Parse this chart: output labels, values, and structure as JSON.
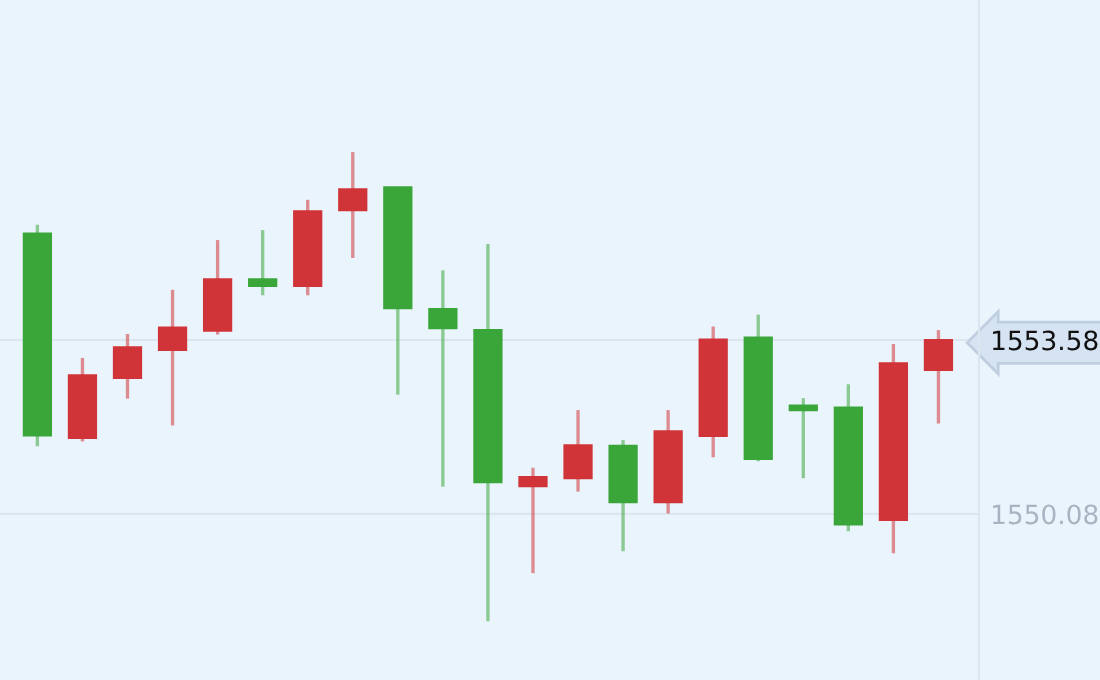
{
  "chart_data": {
    "type": "candlestick",
    "categories": [
      null,
      null,
      null,
      null,
      null,
      null,
      null,
      null,
      null,
      null,
      null,
      null,
      null,
      null,
      null,
      null,
      null,
      null,
      null,
      null,
      null
    ],
    "ohlc": [
      [
        1555.72,
        1555.9,
        1551.44,
        1551.66
      ],
      [
        1551.61,
        1553.22,
        1551.54,
        1552.87
      ],
      [
        1552.82,
        1553.7,
        1552.4,
        1553.43
      ],
      [
        1553.38,
        1554.59,
        1551.86,
        1553.83
      ],
      [
        1553.77,
        1555.59,
        1553.69,
        1554.8
      ],
      [
        1554.8,
        1555.79,
        1554.48,
        1554.67
      ],
      [
        1554.67,
        1556.4,
        1554.48,
        1556.17
      ],
      [
        1556.19,
        1557.36,
        1555.23,
        1556.61
      ],
      [
        1556.65,
        1556.65,
        1552.48,
        1554.22
      ],
      [
        1554.2,
        1554.98,
        1550.63,
        1553.82
      ],
      [
        1553.78,
        1555.51,
        1547.92,
        1550.72
      ],
      [
        1550.64,
        1551.01,
        1548.89,
        1550.82
      ],
      [
        1550.8,
        1552.17,
        1550.53,
        1551.46
      ],
      [
        1551.45,
        1551.57,
        1549.33,
        1550.32
      ],
      [
        1550.32,
        1552.17,
        1550.09,
        1551.74
      ],
      [
        1551.65,
        1553.85,
        1551.22,
        1553.59
      ],
      [
        1553.63,
        1554.09,
        1551.14,
        1551.19
      ],
      [
        1552.26,
        1552.41,
        1550.8,
        1552.17
      ],
      [
        1552.22,
        1552.69,
        1549.73,
        1549.87
      ],
      [
        1549.96,
        1553.5,
        1549.29,
        1553.11
      ],
      [
        1552.98,
        1553.78,
        1551.9,
        1553.58
      ]
    ],
    "colors": [
      "#3aa63a",
      "#d03438",
      "#d03438",
      "#d03438",
      "#d03438",
      "#3aa63a",
      "#d03438",
      "#d03438",
      "#3aa63a",
      "#3aa63a",
      "#3aa63a",
      "#d03438",
      "#d03438",
      "#3aa63a",
      "#d03438",
      "#d03438",
      "#3aa63a",
      "#3aa63a",
      "#3aa63a",
      "#d03438",
      "#d03438"
    ],
    "ylim": [
      1546.74,
      1560.42
    ],
    "yticks": [
      1550.08,
      1553.58
    ],
    "grid": "y"
  }
}
